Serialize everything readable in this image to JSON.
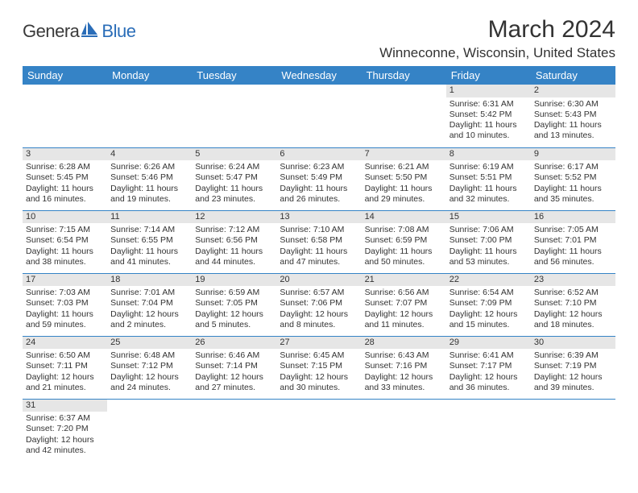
{
  "logo": {
    "main": "Genera",
    "blue": "Blue"
  },
  "title": "March 2024",
  "location": "Winneconne, Wisconsin, United States",
  "colors": {
    "header_bg": "#3583c6",
    "header_text": "#ffffff",
    "daynum_bg": "#e6e6e6",
    "text": "#333333",
    "rule": "#3583c6"
  },
  "day_headers": [
    "Sunday",
    "Monday",
    "Tuesday",
    "Wednesday",
    "Thursday",
    "Friday",
    "Saturday"
  ],
  "weeks": [
    [
      null,
      null,
      null,
      null,
      null,
      {
        "n": "1",
        "sr": "Sunrise: 6:31 AM",
        "ss": "Sunset: 5:42 PM",
        "d1": "Daylight: 11 hours",
        "d2": "and 10 minutes."
      },
      {
        "n": "2",
        "sr": "Sunrise: 6:30 AM",
        "ss": "Sunset: 5:43 PM",
        "d1": "Daylight: 11 hours",
        "d2": "and 13 minutes."
      }
    ],
    [
      {
        "n": "3",
        "sr": "Sunrise: 6:28 AM",
        "ss": "Sunset: 5:45 PM",
        "d1": "Daylight: 11 hours",
        "d2": "and 16 minutes."
      },
      {
        "n": "4",
        "sr": "Sunrise: 6:26 AM",
        "ss": "Sunset: 5:46 PM",
        "d1": "Daylight: 11 hours",
        "d2": "and 19 minutes."
      },
      {
        "n": "5",
        "sr": "Sunrise: 6:24 AM",
        "ss": "Sunset: 5:47 PM",
        "d1": "Daylight: 11 hours",
        "d2": "and 23 minutes."
      },
      {
        "n": "6",
        "sr": "Sunrise: 6:23 AM",
        "ss": "Sunset: 5:49 PM",
        "d1": "Daylight: 11 hours",
        "d2": "and 26 minutes."
      },
      {
        "n": "7",
        "sr": "Sunrise: 6:21 AM",
        "ss": "Sunset: 5:50 PM",
        "d1": "Daylight: 11 hours",
        "d2": "and 29 minutes."
      },
      {
        "n": "8",
        "sr": "Sunrise: 6:19 AM",
        "ss": "Sunset: 5:51 PM",
        "d1": "Daylight: 11 hours",
        "d2": "and 32 minutes."
      },
      {
        "n": "9",
        "sr": "Sunrise: 6:17 AM",
        "ss": "Sunset: 5:52 PM",
        "d1": "Daylight: 11 hours",
        "d2": "and 35 minutes."
      }
    ],
    [
      {
        "n": "10",
        "sr": "Sunrise: 7:15 AM",
        "ss": "Sunset: 6:54 PM",
        "d1": "Daylight: 11 hours",
        "d2": "and 38 minutes."
      },
      {
        "n": "11",
        "sr": "Sunrise: 7:14 AM",
        "ss": "Sunset: 6:55 PM",
        "d1": "Daylight: 11 hours",
        "d2": "and 41 minutes."
      },
      {
        "n": "12",
        "sr": "Sunrise: 7:12 AM",
        "ss": "Sunset: 6:56 PM",
        "d1": "Daylight: 11 hours",
        "d2": "and 44 minutes."
      },
      {
        "n": "13",
        "sr": "Sunrise: 7:10 AM",
        "ss": "Sunset: 6:58 PM",
        "d1": "Daylight: 11 hours",
        "d2": "and 47 minutes."
      },
      {
        "n": "14",
        "sr": "Sunrise: 7:08 AM",
        "ss": "Sunset: 6:59 PM",
        "d1": "Daylight: 11 hours",
        "d2": "and 50 minutes."
      },
      {
        "n": "15",
        "sr": "Sunrise: 7:06 AM",
        "ss": "Sunset: 7:00 PM",
        "d1": "Daylight: 11 hours",
        "d2": "and 53 minutes."
      },
      {
        "n": "16",
        "sr": "Sunrise: 7:05 AM",
        "ss": "Sunset: 7:01 PM",
        "d1": "Daylight: 11 hours",
        "d2": "and 56 minutes."
      }
    ],
    [
      {
        "n": "17",
        "sr": "Sunrise: 7:03 AM",
        "ss": "Sunset: 7:03 PM",
        "d1": "Daylight: 11 hours",
        "d2": "and 59 minutes."
      },
      {
        "n": "18",
        "sr": "Sunrise: 7:01 AM",
        "ss": "Sunset: 7:04 PM",
        "d1": "Daylight: 12 hours",
        "d2": "and 2 minutes."
      },
      {
        "n": "19",
        "sr": "Sunrise: 6:59 AM",
        "ss": "Sunset: 7:05 PM",
        "d1": "Daylight: 12 hours",
        "d2": "and 5 minutes."
      },
      {
        "n": "20",
        "sr": "Sunrise: 6:57 AM",
        "ss": "Sunset: 7:06 PM",
        "d1": "Daylight: 12 hours",
        "d2": "and 8 minutes."
      },
      {
        "n": "21",
        "sr": "Sunrise: 6:56 AM",
        "ss": "Sunset: 7:07 PM",
        "d1": "Daylight: 12 hours",
        "d2": "and 11 minutes."
      },
      {
        "n": "22",
        "sr": "Sunrise: 6:54 AM",
        "ss": "Sunset: 7:09 PM",
        "d1": "Daylight: 12 hours",
        "d2": "and 15 minutes."
      },
      {
        "n": "23",
        "sr": "Sunrise: 6:52 AM",
        "ss": "Sunset: 7:10 PM",
        "d1": "Daylight: 12 hours",
        "d2": "and 18 minutes."
      }
    ],
    [
      {
        "n": "24",
        "sr": "Sunrise: 6:50 AM",
        "ss": "Sunset: 7:11 PM",
        "d1": "Daylight: 12 hours",
        "d2": "and 21 minutes."
      },
      {
        "n": "25",
        "sr": "Sunrise: 6:48 AM",
        "ss": "Sunset: 7:12 PM",
        "d1": "Daylight: 12 hours",
        "d2": "and 24 minutes."
      },
      {
        "n": "26",
        "sr": "Sunrise: 6:46 AM",
        "ss": "Sunset: 7:14 PM",
        "d1": "Daylight: 12 hours",
        "d2": "and 27 minutes."
      },
      {
        "n": "27",
        "sr": "Sunrise: 6:45 AM",
        "ss": "Sunset: 7:15 PM",
        "d1": "Daylight: 12 hours",
        "d2": "and 30 minutes."
      },
      {
        "n": "28",
        "sr": "Sunrise: 6:43 AM",
        "ss": "Sunset: 7:16 PM",
        "d1": "Daylight: 12 hours",
        "d2": "and 33 minutes."
      },
      {
        "n": "29",
        "sr": "Sunrise: 6:41 AM",
        "ss": "Sunset: 7:17 PM",
        "d1": "Daylight: 12 hours",
        "d2": "and 36 minutes."
      },
      {
        "n": "30",
        "sr": "Sunrise: 6:39 AM",
        "ss": "Sunset: 7:19 PM",
        "d1": "Daylight: 12 hours",
        "d2": "and 39 minutes."
      }
    ],
    [
      {
        "n": "31",
        "sr": "Sunrise: 6:37 AM",
        "ss": "Sunset: 7:20 PM",
        "d1": "Daylight: 12 hours",
        "d2": "and 42 minutes."
      },
      null,
      null,
      null,
      null,
      null,
      null
    ]
  ]
}
